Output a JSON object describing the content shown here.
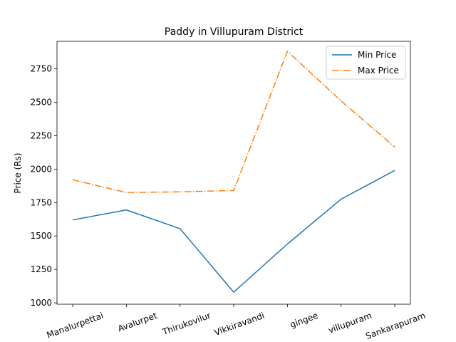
{
  "chart_data": {
    "type": "line",
    "title": "Paddy in Villupuram District",
    "xlabel": "",
    "ylabel": "Price (Rs)",
    "categories": [
      "Manalurpettai",
      "Avalurpet",
      "Thirukovilur",
      "Vikkiravandi",
      "gingee",
      "villupuram",
      "Sankarapuram"
    ],
    "series": [
      {
        "name": "Min Price",
        "color": "#1f77b4",
        "dash": "solid",
        "values": [
          1620,
          1695,
          1555,
          1080,
          1440,
          1775,
          1990
        ]
      },
      {
        "name": "Max Price",
        "color": "#ff7f0e",
        "dash": "dashdot",
        "values": [
          1920,
          1825,
          1830,
          1840,
          2880,
          2510,
          2165
        ]
      }
    ],
    "ylim": [
      990,
      2955
    ],
    "yticks": [
      1000,
      1250,
      1500,
      1750,
      2000,
      2250,
      2500,
      2750
    ],
    "legend": "top-right",
    "grid": false
  }
}
